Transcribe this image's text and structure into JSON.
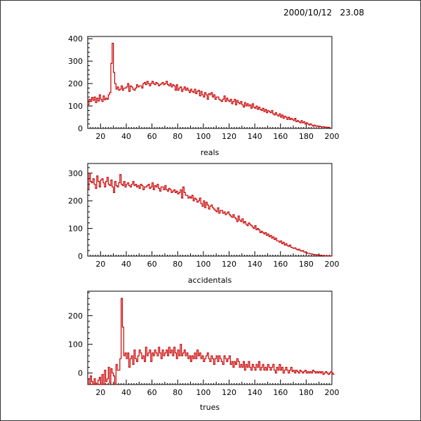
{
  "timestamp": "2000/10/12   23.08",
  "colors": {
    "histogram": "#cc0000",
    "axis": "#000000"
  },
  "chart_data": [
    {
      "type": "histogram",
      "xlabel": "reals",
      "xlim": [
        10,
        200
      ],
      "ylim": [
        0,
        410
      ],
      "yticks": [
        0,
        100,
        200,
        300,
        400
      ],
      "xticks": [
        20,
        40,
        60,
        80,
        100,
        120,
        140,
        160,
        180,
        200
      ],
      "bin_width": 1,
      "x_start": 10,
      "values": [
        105,
        130,
        120,
        138,
        125,
        140,
        115,
        135,
        122,
        150,
        130,
        120,
        145,
        128,
        135,
        130,
        150,
        160,
        290,
        380,
        250,
        200,
        175,
        185,
        170,
        175,
        190,
        170,
        180,
        180,
        185,
        200,
        165,
        190,
        185,
        175,
        170,
        180,
        195,
        185,
        190,
        190,
        180,
        200,
        205,
        195,
        210,
        200,
        190,
        200,
        210,
        200,
        195,
        205,
        200,
        190,
        195,
        200,
        205,
        195,
        200,
        210,
        195,
        190,
        200,
        185,
        195,
        190,
        170,
        195,
        170,
        180,
        185,
        165,
        175,
        185,
        170,
        180,
        170,
        160,
        175,
        165,
        160,
        175,
        155,
        165,
        170,
        145,
        165,
        150,
        140,
        160,
        150,
        130,
        155,
        150,
        160,
        140,
        150,
        130,
        140,
        140,
        130,
        125,
        120,
        130,
        145,
        120,
        135,
        125,
        120,
        130,
        110,
        120,
        130,
        105,
        125,
        115,
        110,
        120,
        105,
        95,
        115,
        100,
        110,
        100,
        105,
        90,
        110,
        95,
        90,
        100,
        85,
        95,
        85,
        80,
        90,
        75,
        85,
        70,
        80,
        75,
        70,
        80,
        65,
        60,
        70,
        60,
        55,
        65,
        50,
        60,
        45,
        55,
        50,
        40,
        50,
        40,
        45,
        40,
        35,
        45,
        30,
        35,
        30,
        25,
        35,
        25,
        30,
        20,
        25,
        20,
        15,
        20,
        15,
        10,
        15,
        10,
        12,
        8,
        10,
        8,
        6,
        8,
        5,
        6,
        4,
        5,
        3
      ]
    },
    {
      "type": "histogram",
      "xlabel": "accidentals",
      "xlim": [
        10,
        200
      ],
      "ylim": [
        0,
        335
      ],
      "yticks": [
        0,
        100,
        200,
        300
      ],
      "xticks": [
        20,
        40,
        60,
        80,
        100,
        120,
        140,
        160,
        180,
        200
      ],
      "bin_width": 1,
      "x_start": 10,
      "values": [
        245,
        300,
        270,
        265,
        280,
        260,
        245,
        290,
        270,
        250,
        275,
        280,
        265,
        250,
        270,
        285,
        260,
        255,
        275,
        250,
        230,
        270,
        255,
        250,
        265,
        295,
        260,
        255,
        270,
        250,
        260,
        265,
        255,
        250,
        260,
        270,
        255,
        260,
        250,
        255,
        245,
        260,
        255,
        240,
        250,
        250,
        255,
        260,
        245,
        250,
        265,
        240,
        255,
        250,
        260,
        245,
        235,
        250,
        250,
        240,
        255,
        240,
        235,
        245,
        240,
        230,
        235,
        240,
        230,
        235,
        225,
        230,
        240,
        210,
        250,
        230,
        220,
        220,
        210,
        215,
        210,
        220,
        200,
        210,
        205,
        195,
        200,
        210,
        190,
        180,
        200,
        175,
        195,
        185,
        170,
        180,
        185,
        175,
        170,
        165,
        160,
        175,
        155,
        165,
        165,
        155,
        160,
        150,
        155,
        160,
        150,
        145,
        140,
        150,
        140,
        135,
        125,
        145,
        130,
        125,
        135,
        120,
        125,
        115,
        110,
        120,
        115,
        110,
        105,
        100,
        110,
        95,
        100,
        95,
        85,
        90,
        85,
        80,
        85,
        75,
        80,
        70,
        75,
        65,
        70,
        60,
        65,
        55,
        55,
        50,
        55,
        45,
        50,
        40,
        45,
        38,
        35,
        40,
        32,
        30,
        28,
        30,
        25,
        22,
        25,
        20,
        18,
        20,
        15,
        14,
        12,
        10,
        10,
        8,
        8,
        6,
        6,
        5,
        5,
        4,
        3,
        3,
        2,
        2,
        1,
        1,
        1,
        1,
        1,
        1
      ]
    },
    {
      "type": "histogram",
      "xlabel": "trues",
      "xlim": [
        10,
        200
      ],
      "ylim": [
        -40,
        285
      ],
      "yticks": [
        0,
        100,
        200
      ],
      "xticks": [
        20,
        40,
        60,
        80,
        100,
        120,
        140,
        160,
        180,
        200
      ],
      "bin_width": 1,
      "x_start": 10,
      "values": [
        -20,
        -45,
        -10,
        -30,
        -50,
        -20,
        -35,
        -40,
        -25,
        -15,
        -60,
        -5,
        -50,
        10,
        -30,
        -20,
        20,
        -35,
        15,
        0,
        -10,
        -40,
        30,
        10,
        10,
        50,
        260,
        160,
        60,
        70,
        50,
        70,
        20,
        50,
        60,
        30,
        80,
        50,
        40,
        60,
        80,
        70,
        50,
        60,
        40,
        90,
        60,
        70,
        80,
        40,
        70,
        60,
        80,
        70,
        60,
        90,
        70,
        50,
        80,
        60,
        70,
        80,
        60,
        90,
        70,
        80,
        60,
        90,
        70,
        50,
        80,
        60,
        100,
        60,
        70,
        80,
        60,
        70,
        50,
        60,
        40,
        60,
        50,
        70,
        50,
        80,
        60,
        70,
        50,
        60,
        40,
        50,
        60,
        70,
        50,
        40,
        60,
        50,
        30,
        50,
        60,
        40,
        60,
        50,
        40,
        30,
        60,
        50,
        40,
        50,
        60,
        30,
        40,
        20,
        40,
        30,
        50,
        40,
        20,
        30,
        20,
        40,
        10,
        30,
        20,
        40,
        20,
        10,
        30,
        20,
        10,
        30,
        20,
        40,
        10,
        20,
        30,
        10,
        20,
        10,
        30,
        20,
        10,
        20,
        30,
        10,
        0,
        20,
        10,
        30,
        10,
        20,
        0,
        10,
        20,
        10,
        0,
        10,
        20,
        5,
        10,
        0,
        10,
        5,
        0,
        10,
        5,
        0,
        5,
        10,
        0,
        5,
        0,
        5,
        0,
        10,
        5,
        0,
        5,
        0,
        5,
        0,
        5,
        -5,
        0,
        5,
        0,
        -5,
        0,
        5,
        0,
        -5
      ]
    }
  ]
}
